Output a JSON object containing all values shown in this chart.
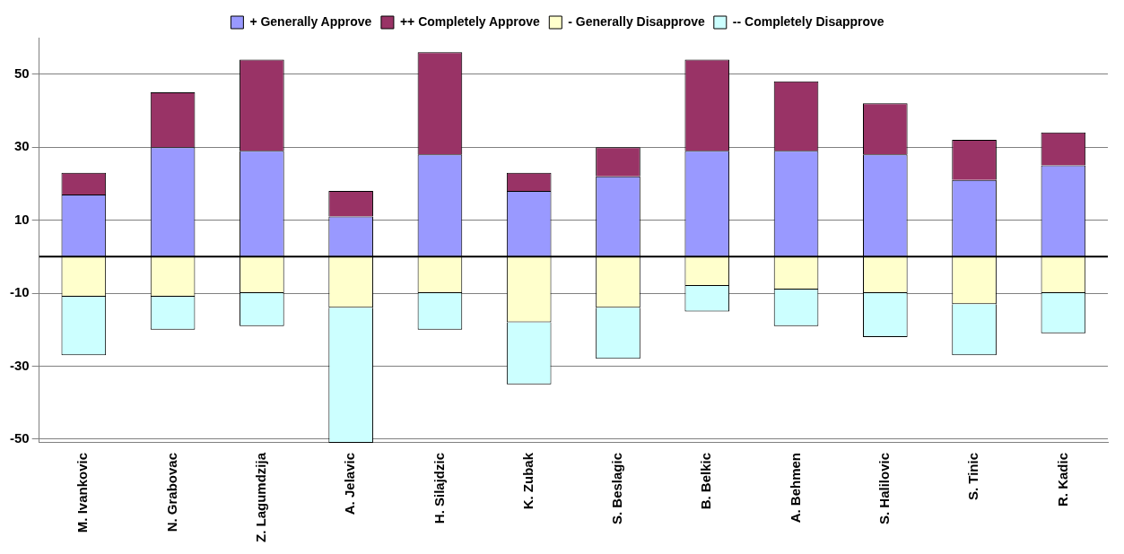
{
  "chart_data": {
    "type": "bar",
    "stacked": true,
    "categories": [
      "M. Ivankovic",
      "N. Grabovac",
      "Z. Lagumdzija",
      "A. Jelavic",
      "H. Silajdzic",
      "K. Zubak",
      "S. Beslagic",
      "B. Belkic",
      "A. Behmen",
      "S. Halilovic",
      "S. Tinic",
      "R. Kadic"
    ],
    "series": [
      {
        "name": "+ Generally Approve",
        "color": "#9999ff",
        "values": [
          17,
          30,
          29,
          11,
          28,
          18,
          22,
          29,
          29,
          28,
          21,
          25
        ]
      },
      {
        "name": "++ Completely Approve",
        "color": "#993366",
        "values": [
          6,
          15,
          25,
          7,
          28,
          5,
          8,
          25,
          19,
          14,
          11,
          9
        ]
      },
      {
        "name": "- Generally Disapprove",
        "color": "#ffffcc",
        "values": [
          -11,
          -11,
          -10,
          -14,
          -10,
          -18,
          -14,
          -8,
          -9,
          -10,
          -13,
          -10
        ]
      },
      {
        "name": "-- Completely Disapprove",
        "color": "#ccffff",
        "values": [
          -16,
          -9,
          -9,
          -37,
          -10,
          -17,
          -14,
          -7,
          -10,
          -12,
          -14,
          -11
        ]
      }
    ],
    "ylim": [
      -51,
      60
    ],
    "yticks": [
      -50,
      -30,
      -10,
      10,
      30,
      50
    ],
    "grid": "y",
    "legend": "top"
  }
}
